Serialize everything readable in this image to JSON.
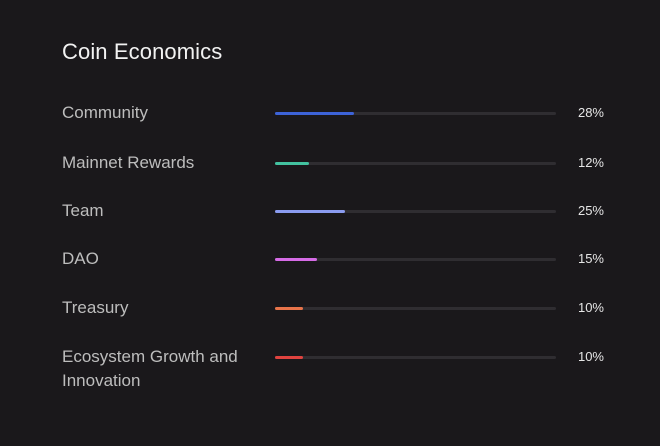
{
  "title": "Coin Economics",
  "allocations": [
    {
      "label": "Community",
      "percent_text": "28%",
      "value": 28,
      "color": "#3d63d8"
    },
    {
      "label": "Mainnet Rewards",
      "percent_text": "12%",
      "value": 12,
      "color": "#43c2a0"
    },
    {
      "label": "Team",
      "percent_text": "25%",
      "value": 25,
      "color": "#8b9cf0"
    },
    {
      "label": "DAO",
      "percent_text": "15%",
      "value": 15,
      "color": "#d66be6"
    },
    {
      "label": "Treasury",
      "percent_text": "10%",
      "value": 10,
      "color": "#e8744a"
    },
    {
      "label": "Ecosystem Growth and Innovation",
      "percent_text": "10%",
      "value": 10,
      "color": "#e0433f"
    }
  ]
}
